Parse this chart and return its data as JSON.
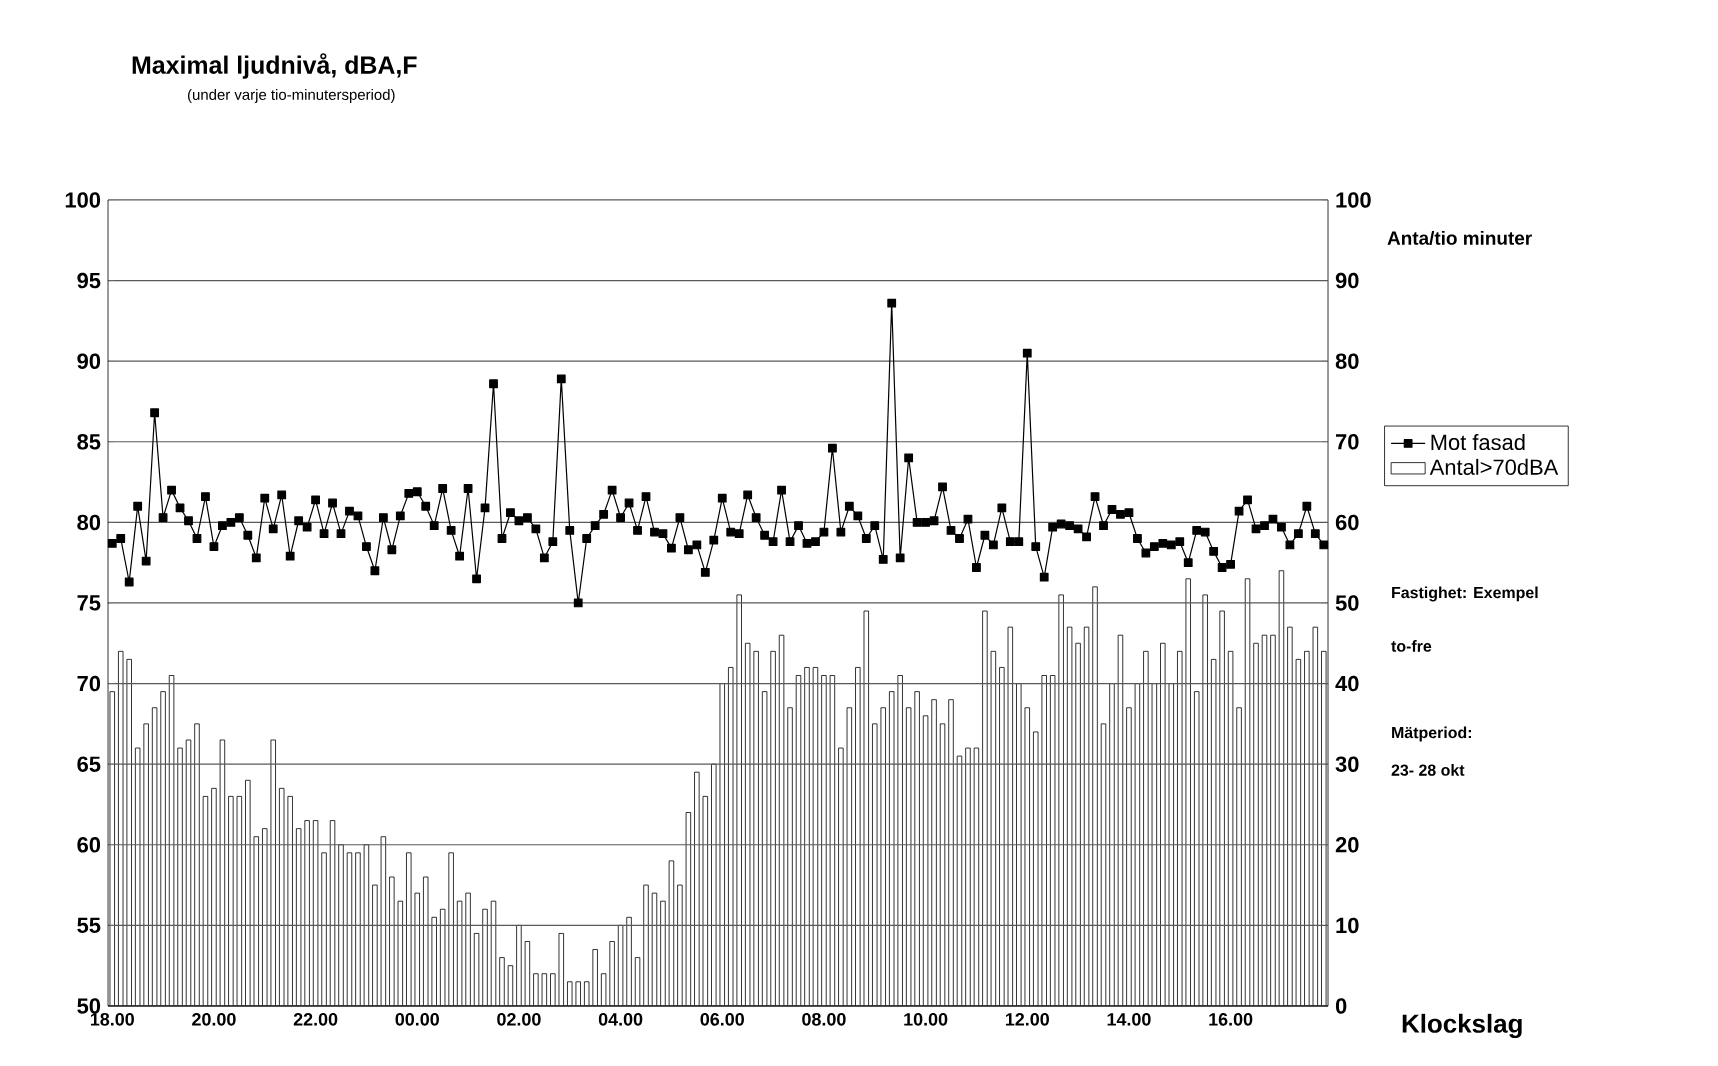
{
  "chart_data": {
    "type": "bar",
    "title": "Maximal ljudnivå, dBA,F",
    "subtitle": "(under varje tio-minutersperiod)",
    "xlabel": "Klockslag",
    "y2label": "Anta/tio minuter",
    "annotations": [
      "Fastighet: Exempel",
      "to-fre",
      "Mätperiod:",
      "23- 28 okt"
    ],
    "categories": [
      "18.00",
      null,
      null,
      null,
      null,
      null,
      null,
      null,
      null,
      null,
      null,
      null,
      "20.00",
      null,
      null,
      null,
      null,
      null,
      null,
      null,
      null,
      null,
      null,
      null,
      "22.00",
      null,
      null,
      null,
      null,
      null,
      null,
      null,
      null,
      null,
      null,
      null,
      "00.00",
      null,
      null,
      null,
      null,
      null,
      null,
      null,
      null,
      null,
      null,
      null,
      "02.00",
      null,
      null,
      null,
      null,
      null,
      null,
      null,
      null,
      null,
      null,
      null,
      "04.00",
      null,
      null,
      null,
      null,
      null,
      null,
      null,
      null,
      null,
      null,
      null,
      "06.00",
      null,
      null,
      null,
      null,
      null,
      null,
      null,
      null,
      null,
      null,
      null,
      "08.00",
      null,
      null,
      null,
      null,
      null,
      null,
      null,
      null,
      null,
      null,
      null,
      "10.00",
      null,
      null,
      null,
      null,
      null,
      null,
      null,
      null,
      null,
      null,
      null,
      "12.00",
      null,
      null,
      null,
      null,
      null,
      null,
      null,
      null,
      null,
      null,
      null,
      "14.00",
      null,
      null,
      null,
      null,
      null,
      null,
      null,
      null,
      null,
      null,
      null,
      "16.00",
      null,
      null,
      null,
      null,
      null,
      null,
      null,
      null,
      null,
      null,
      null
    ],
    "series": [
      {
        "name": "Mot fasad",
        "type": "line",
        "color": "#000000",
        "values": [
          78.7,
          79.0,
          76.3,
          81.0,
          77.6,
          86.8,
          80.3,
          82.0,
          80.9,
          80.1,
          79.0,
          81.6,
          78.5,
          79.8,
          80.0,
          80.3,
          79.2,
          77.8,
          81.5,
          79.6,
          81.7,
          77.9,
          80.1,
          79.7,
          81.4,
          79.3,
          81.2,
          79.3,
          80.7,
          80.4,
          78.5,
          77.0,
          80.3,
          78.3,
          80.4,
          81.8,
          81.9,
          81.0,
          79.8,
          82.1,
          79.5,
          77.9,
          82.1,
          76.5,
          80.9,
          88.6,
          79.0,
          80.6,
          80.1,
          80.3,
          79.6,
          77.8,
          78.8,
          88.9,
          79.5,
          75.0,
          79.0,
          79.8,
          80.5,
          82.0,
          80.3,
          81.2,
          79.5,
          81.6,
          79.4,
          79.3,
          78.4,
          80.3,
          78.3,
          78.6,
          76.9,
          78.9,
          81.5,
          79.4,
          79.3,
          81.7,
          80.3,
          79.2,
          78.8,
          82.0,
          78.8,
          79.8,
          78.7,
          78.8,
          79.4,
          84.6,
          79.4,
          81.0,
          80.4,
          79.0,
          79.8,
          77.7,
          93.6,
          77.8,
          84.0,
          80.0,
          80.0,
          80.1,
          82.2,
          79.5,
          79.0,
          80.2,
          77.2,
          79.2,
          78.6,
          80.9,
          78.8,
          78.8,
          90.5,
          78.5,
          76.6,
          79.7,
          79.9,
          79.8,
          79.6,
          79.1,
          81.6,
          79.8,
          80.8,
          80.5,
          80.6,
          79.0,
          78.1,
          78.5,
          78.7,
          78.6,
          78.8,
          77.5,
          79.5,
          79.4,
          78.2,
          77.2,
          77.4,
          80.7,
          81.4,
          79.6,
          79.8,
          80.2,
          79.7,
          78.6,
          79.3,
          81.0,
          79.3,
          78.6
        ]
      },
      {
        "name": "Antal>70dBA",
        "axis": "y2",
        "color": "#ffffff",
        "values": [
          39,
          44,
          43,
          32,
          35,
          37,
          39,
          41,
          32,
          33,
          35,
          26,
          27,
          33,
          26,
          26,
          28,
          21,
          22,
          33,
          27,
          26,
          22,
          23,
          23,
          19,
          23,
          20,
          19,
          19,
          20,
          15,
          21,
          16,
          13,
          19,
          14,
          16,
          11,
          12,
          19,
          13,
          14,
          9,
          12,
          13,
          6,
          5,
          10,
          8,
          4,
          4,
          4,
          9,
          3,
          3,
          3,
          7,
          4,
          8,
          10,
          11,
          6,
          15,
          14,
          13,
          18,
          15,
          24,
          29,
          26,
          30,
          40,
          42,
          51,
          45,
          44,
          39,
          44,
          46,
          37,
          41,
          42,
          42,
          41,
          41,
          32,
          37,
          42,
          49,
          35,
          37,
          39,
          41,
          37,
          39,
          36,
          38,
          35,
          38,
          31,
          32,
          32,
          49,
          44,
          42,
          47,
          40,
          37,
          34,
          41,
          41,
          51,
          47,
          45,
          47,
          52,
          35,
          40,
          46,
          37,
          40,
          44,
          40,
          45,
          40,
          44,
          53,
          39,
          51,
          43,
          49,
          44,
          37,
          53,
          45,
          46,
          46,
          54,
          47,
          43,
          44,
          47,
          44
        ]
      }
    ],
    "ylim": [
      50,
      100
    ],
    "yticks": [
      50,
      55,
      60,
      65,
      70,
      75,
      80,
      85,
      90,
      95,
      100
    ],
    "y2lim": [
      0,
      100
    ],
    "y2ticks": [
      0,
      10,
      20,
      30,
      40,
      50,
      60,
      70,
      80,
      90,
      100
    ],
    "grid": "y",
    "legend": "right",
    "marker": "square"
  }
}
